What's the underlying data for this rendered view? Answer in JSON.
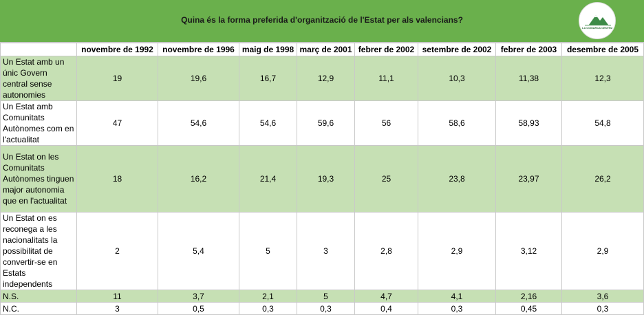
{
  "title": "Quina és la forma preferida d'organització de l'Estat per als valencians?",
  "logo": {
    "text": "LA COMARCA CENTRAL",
    "icon": "mountain-logo-icon"
  },
  "colors": {
    "header_green": "#6ab04c",
    "row_green": "#c6e0b4",
    "grid": "#c9c9c9"
  },
  "columns": [
    "novembre de 1992",
    "novembre de 1996",
    "maig de 1998",
    "març de 2001",
    "febrer de 2002",
    "setembre de 2002",
    "febrer de 2003",
    "desembre de 2005"
  ],
  "rows": [
    {
      "label": "Un Estat amb un únic Govern central sense autonomies",
      "values": [
        "19",
        "19,6",
        "16,7",
        "12,9",
        "11,1",
        "10,3",
        "11,38",
        "12,3"
      ]
    },
    {
      "label": "Un Estat amb Comunitats Autònomes com en l'actualitat",
      "values": [
        "47",
        "54,6",
        "54,6",
        "59,6",
        "56",
        "58,6",
        "58,93",
        "54,8"
      ]
    },
    {
      "label": "Un Estat on les Comunitats Autònomes tinguen major autonomia que en l'actualitat",
      "values": [
        "18",
        "16,2",
        "21,4",
        "19,3",
        "25",
        "23,8",
        "23,97",
        "26,2"
      ]
    },
    {
      "label": "Un Estat on es reconega a les nacionalitats la possibilitat de convertir-se en Estats independents",
      "values": [
        "2",
        "5,4",
        "5",
        "3",
        "2,8",
        "2,9",
        "3,12",
        "2,9"
      ]
    },
    {
      "label": "N.S.",
      "values": [
        "11",
        "3,7",
        "2,1",
        "5",
        "4,7",
        "4,1",
        "2,16",
        "3,6"
      ]
    },
    {
      "label": "N.C.",
      "values": [
        "3",
        "0,5",
        "0,3",
        "0,3",
        "0,4",
        "0,3",
        "0,45",
        "0,3"
      ]
    }
  ]
}
